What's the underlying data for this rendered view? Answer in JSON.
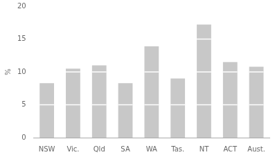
{
  "chart_data": {
    "type": "bar",
    "categories": [
      "NSW",
      "Vic.",
      "Qld",
      "SA",
      "WA",
      "Tas.",
      "NT",
      "ACT",
      "Aust."
    ],
    "values": [
      8.3,
      10.5,
      11.0,
      8.3,
      13.9,
      9.0,
      17.2,
      11.5,
      10.8
    ],
    "color": "#c8c8c8",
    "dividers": [
      [
        5.0
      ],
      [
        5.0,
        10.0
      ],
      [
        5.0,
        10.0
      ],
      [
        5.0
      ],
      [
        5.0,
        10.0
      ],
      [
        5.0
      ],
      [
        5.0,
        10.0,
        15.0
      ],
      [
        5.0,
        10.0
      ],
      [
        5.0,
        10.0
      ]
    ],
    "divider_color": "#ffffff",
    "ylabel": "%",
    "ylim": [
      0,
      20
    ],
    "yticks": [
      0,
      5,
      10,
      15,
      20
    ],
    "grid": false
  }
}
